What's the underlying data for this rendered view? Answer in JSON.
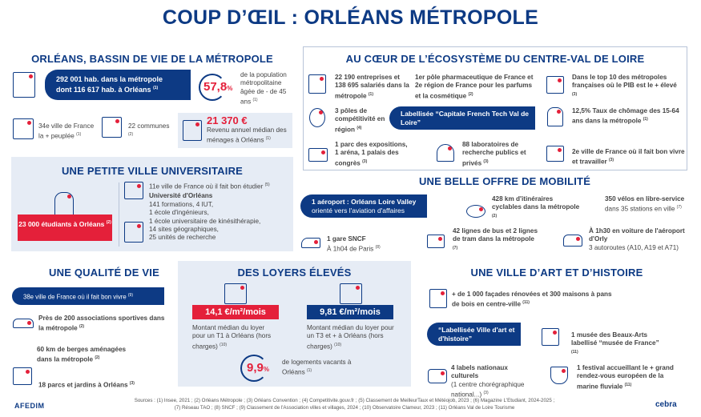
{
  "title": "COUP D’ŒIL : ORLÉANS MÉTROPOLE",
  "bassin": {
    "title": "ORLÉANS, BASSIN DE VIE DE LA MÉTROPOLE",
    "pop_line1": "292 001 hab. dans la métropole",
    "pop_line2": "dont 116 617 hab. à Orléans",
    "pop_ref": "(1)",
    "pct": "57,8",
    "pct_unit": "%",
    "pct_text": "de la population métropolitaine âgée de - de 45 ans",
    "pct_ref": "(1)",
    "rank": "34e ville de France la + peuplée",
    "rank_ref": "(1)",
    "communes": "22 communes",
    "communes_ref": "(2)",
    "revenu": "21 370 €",
    "revenu_text": "Revenu annuel médian des ménages à Orléans",
    "revenu_ref": "(1)"
  },
  "univ": {
    "title": "UNE PETITE VILLE UNIVERSITAIRE",
    "students": "23 000 étudiants à Orléans",
    "students_ref": "(2)",
    "rank": "11e ville de France où il fait bon étudier",
    "rank_ref": "(5)",
    "uni_name": "Université d'Orléans",
    "uni_lines": [
      "141 formations, 4 IUT,",
      "1 école d'ingénieurs,",
      "1 école universitaire de kinésithérapie,",
      "14 sites géographiques,",
      "25 unités de recherche"
    ]
  },
  "eco": {
    "title": "AU CŒUR DE L’ÉCOSYSTÈME DU CENTRE-VAL DE LOIRE",
    "items": [
      {
        "text": "22 190 entreprises et 138 695 salariés dans la métropole",
        "ref": "(1)"
      },
      {
        "text": "1er pôle pharmaceutique de France et 2e région de France pour les parfums et la cosmétique",
        "ref": "(2)"
      },
      {
        "text": "Dans le top 10 des métropoles françaises où le PIB est le + élevé",
        "ref": "(3)"
      },
      {
        "text": "3 pôles de compétitivité en région",
        "ref": "(4)"
      },
      {
        "text": "12,5% Taux de chômage des 15-64 ans dans la métropole",
        "ref": "(1)"
      },
      {
        "text": "1 parc des expositions, 1 aréna, 1 palais des congrès",
        "ref": "(3)"
      },
      {
        "text": "88 laboratoires de recherche publics et privés",
        "ref": "(3)"
      },
      {
        "text": "2e ville de France où il fait bon vivre et travailler",
        "ref": "(3)"
      }
    ],
    "label": "Labellisée “Capitale French Tech Val de Loire”"
  },
  "mob": {
    "title": "UNE BELLE OFFRE DE MOBILITÉ",
    "airport1": "1 aéroport : Orléans Loire Valley",
    "airport2": "orienté vers l'aviation d'affaires",
    "items": [
      {
        "text": "428 km d'itinéraires cyclables dans la métropole",
        "ref": "(2)"
      },
      {
        "text": "350 vélos en libre-service",
        "sub": "dans 35 stations en ville",
        "ref": "(7)"
      },
      {
        "text": "1 gare SNCF",
        "sub": "À 1h04 de Paris",
        "ref": "(8)"
      },
      {
        "text": "42 lignes de bus et 2 lignes de tram dans la métropole",
        "ref": "(7)"
      },
      {
        "text": "À 1h30 en voiture de l'aéroport d'Orly",
        "sub": "3 autoroutes (A10, A19 et A71)"
      }
    ]
  },
  "vie": {
    "title": "UNE QUALITÉ DE VIE",
    "pill": "38e ville de France où il fait bon vivre",
    "pill_ref": "(9)",
    "items": [
      {
        "text": "Près de 200 associations sportives dans la métropole",
        "ref": "(2)"
      },
      {
        "text": "60 km de berges aménagées dans la métropole",
        "ref": "(2)"
      },
      {
        "text": "18 parcs et jardins à Orléans",
        "ref": "(3)"
      }
    ]
  },
  "loyers": {
    "title": "DES LOYERS ÉLEVÉS",
    "t1_price": "14,1 €/m²/mois",
    "t1_text": "Montant médian du loyer pour un T1 à Orléans (hors charges)",
    "t3_price": "9,81 €/m²/mois",
    "t3_text": "Montant médian du loyer pour un T3 et + à Orléans (hors charges)",
    "ref": "(10)",
    "vac_pct": "9,9",
    "vac_unit": "%",
    "vac_text": "de logements vacants à Orléans",
    "vac_ref": "(1)"
  },
  "art": {
    "title": "UNE VILLE D’ART ET D’HISTOIRE",
    "facades": "+ de 1 000 façades rénovées et 300 maisons à pans de bois en centre-ville",
    "facades_ref": "(11)",
    "label": "“Labellisée Ville d'art et d'histoire”",
    "musee": "1 musée des Beaux-Arts labellisé “musée de France”",
    "musee_ref": "(11)",
    "labels": "4 labels nationaux culturels",
    "labels_sub": "(1 centre chorégraphique national...)",
    "labels_ref": "(3)",
    "festival": "1 festival accueillant le + grand rendez-vous européen de la marine fluviale",
    "festival_ref": "(11)"
  },
  "footer": {
    "logo_left": "AFEDIM",
    "sources1": "Sources : (1) Insee, 2021 ; (2) Orléans Métropole ; (3) Orléans Convention ; (4) Competitivite.gouv.fr ; (5) Classement de MeilleurTaux et Météojob, 2023 ; (6) Magazine L'Etudiant, 2024-2025 ;",
    "sources2": "(7) Réseau TAO ; (8) SNCF ; (9) Classement de l'Association villes et villages, 2024 ; (10) Observatoire Clameur, 2023 ; (11) Orléans Val de Loire Tourisme",
    "logo_right": "cebra"
  },
  "colors": {
    "navy": "#0d3a84",
    "red": "#e4203a",
    "light": "#e6ecf5"
  }
}
